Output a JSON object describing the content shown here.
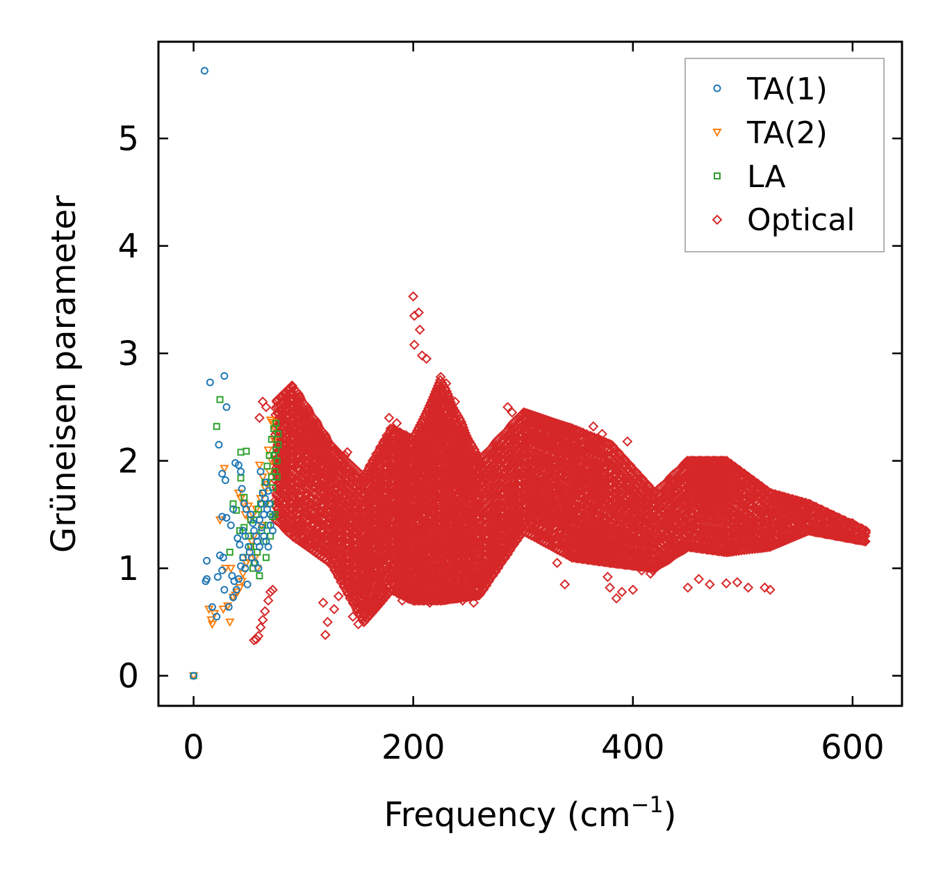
{
  "chart_data": {
    "type": "scatter",
    "xlabel": "Frequency (cm",
    "xlabel_sup": "−1",
    "xlabel_suffix": ")",
    "ylabel": "Grüneisen parameter",
    "xlim": [
      -32,
      645
    ],
    "ylim": [
      -0.28,
      5.9
    ],
    "xticks": [
      0,
      200,
      400,
      600
    ],
    "xtick_labels": [
      "0",
      "200",
      "400",
      "600"
    ],
    "yticks": [
      0,
      1,
      2,
      3,
      4,
      5
    ],
    "ytick_labels": [
      "0",
      "1",
      "2",
      "3",
      "4",
      "5"
    ],
    "grid": false,
    "legend_position": "top-right",
    "series": [
      {
        "name": "TA(1)",
        "marker": "circle",
        "color": "#1f77b4",
        "points": [
          [
            0,
            0
          ],
          [
            10,
            5.63
          ],
          [
            15,
            2.73
          ],
          [
            28,
            2.79
          ],
          [
            30,
            2.5
          ],
          [
            23,
            2.15
          ],
          [
            26,
            1.88
          ],
          [
            29,
            1.82
          ],
          [
            26,
            1.48
          ],
          [
            30,
            1.47
          ],
          [
            12,
            1.07
          ],
          [
            12,
            0.9
          ],
          [
            11,
            0.88
          ],
          [
            17,
            0.64
          ],
          [
            21,
            0.55
          ],
          [
            22,
            0.92
          ],
          [
            26,
            0.98
          ],
          [
            24,
            1.12
          ],
          [
            27,
            1.1
          ],
          [
            28,
            0.8
          ],
          [
            32,
            0.64
          ],
          [
            35,
            0.93
          ],
          [
            37,
            0.88
          ],
          [
            36,
            0.73
          ],
          [
            39,
            0.8
          ],
          [
            41,
            0.9
          ],
          [
            43,
            1.02
          ],
          [
            45,
            1.1
          ],
          [
            47,
            1.0
          ],
          [
            49,
            0.85
          ],
          [
            50,
            1.2
          ],
          [
            38,
            1.98
          ],
          [
            41,
            1.96
          ],
          [
            43,
            1.9
          ],
          [
            44,
            1.74
          ],
          [
            46,
            1.6
          ],
          [
            48,
            1.55
          ],
          [
            52,
            1.5
          ],
          [
            54,
            1.42
          ],
          [
            55,
            1.35
          ],
          [
            57,
            1.3
          ],
          [
            58,
            1.25
          ],
          [
            60,
            1.2
          ],
          [
            62,
            1.6
          ],
          [
            64,
            1.5
          ],
          [
            66,
            1.8
          ],
          [
            68,
            1.72
          ],
          [
            70,
            1.4
          ],
          [
            72,
            1.35
          ],
          [
            61,
            1.9
          ],
          [
            63,
            1.7
          ],
          [
            65,
            1.65
          ],
          [
            67,
            1.55
          ],
          [
            69,
            1.6
          ],
          [
            40,
            1.28
          ],
          [
            42,
            1.22
          ],
          [
            34,
            1.4
          ],
          [
            36,
            1.55
          ],
          [
            45,
            1.35
          ],
          [
            47,
            1.3
          ],
          [
            51,
            1.15
          ],
          [
            53,
            1.1
          ],
          [
            56,
            1.05
          ],
          [
            59,
            1.0
          ],
          [
            60,
            1.45
          ],
          [
            62,
            1.38
          ],
          [
            64,
            1.3
          ],
          [
            66,
            1.25
          ],
          [
            68,
            1.2
          ],
          [
            70,
            1.5
          ]
        ]
      },
      {
        "name": "TA(2)",
        "marker": "triangle-down",
        "color": "#ff7f0e",
        "points": [
          [
            0,
            0
          ],
          [
            17,
            0.48
          ],
          [
            16,
            0.52
          ],
          [
            14,
            0.62
          ],
          [
            19,
            0.58
          ],
          [
            27,
            0.62
          ],
          [
            31,
            0.65
          ],
          [
            33,
            0.5
          ],
          [
            29,
            1.0
          ],
          [
            34,
            1.0
          ],
          [
            24,
            1.45
          ],
          [
            28,
            1.93
          ],
          [
            47,
            1.5
          ],
          [
            50,
            1.58
          ],
          [
            53,
            1.25
          ],
          [
            56,
            1.1
          ],
          [
            58,
            1.0
          ],
          [
            60,
            1.96
          ],
          [
            63,
            1.85
          ],
          [
            65,
            1.75
          ],
          [
            70,
            2.38
          ],
          [
            72,
            2.36
          ],
          [
            68,
            2.1
          ],
          [
            66,
            1.6
          ],
          [
            62,
            1.4
          ],
          [
            55,
            1.3
          ],
          [
            52,
            1.2
          ],
          [
            49,
            1.1
          ],
          [
            45,
            0.95
          ],
          [
            44,
            0.88
          ],
          [
            42,
            0.82
          ],
          [
            40,
            0.78
          ],
          [
            38,
            0.75
          ],
          [
            36,
            0.73
          ],
          [
            48,
            1.05
          ],
          [
            51,
            1.45
          ],
          [
            54,
            1.5
          ],
          [
            57,
            1.55
          ],
          [
            61,
            1.65
          ],
          [
            64,
            1.7
          ],
          [
            67,
            1.78
          ],
          [
            69,
            1.9
          ],
          [
            71,
            2.0
          ],
          [
            73,
            2.2
          ],
          [
            74,
            2.3
          ],
          [
            46,
            1.6
          ],
          [
            43,
            1.65
          ],
          [
            41,
            1.7
          ]
        ]
      },
      {
        "name": "LA",
        "marker": "square",
        "color": "#2ca02c",
        "points": [
          [
            0,
            0
          ],
          [
            24,
            2.57
          ],
          [
            21,
            2.32
          ],
          [
            43,
            2.08
          ],
          [
            48,
            2.09
          ],
          [
            43,
            1.84
          ],
          [
            36,
            1.6
          ],
          [
            46,
            1.66
          ],
          [
            39,
            1.54
          ],
          [
            42,
            1.35
          ],
          [
            46,
            1.38
          ],
          [
            52,
            1.45
          ],
          [
            33,
            1.15
          ],
          [
            45,
            1.1
          ],
          [
            55,
            1.05
          ],
          [
            60,
            0.93
          ],
          [
            66,
            1.1
          ],
          [
            70,
            1.3
          ],
          [
            72,
            1.48
          ],
          [
            74,
            1.5
          ],
          [
            76,
            1.85
          ],
          [
            75,
            2.1
          ],
          [
            73,
            2.3
          ],
          [
            71,
            2.2
          ],
          [
            69,
            2.05
          ],
          [
            67,
            1.95
          ],
          [
            65,
            1.8
          ],
          [
            63,
            1.7
          ],
          [
            61,
            1.6
          ],
          [
            59,
            1.55
          ],
          [
            57,
            1.5
          ],
          [
            55,
            1.45
          ],
          [
            50,
            1.3
          ],
          [
            52,
            1.2
          ],
          [
            64,
            1.25
          ],
          [
            68,
            1.4
          ],
          [
            70,
            1.6
          ],
          [
            72,
            1.75
          ],
          [
            74,
            1.9
          ],
          [
            76,
            2.0
          ],
          [
            77,
            2.15
          ],
          [
            77,
            2.25
          ],
          [
            75,
            2.35
          ],
          [
            73,
            2.05
          ],
          [
            71,
            1.85
          ],
          [
            62,
            1.35
          ],
          [
            58,
            1.15
          ],
          [
            54,
            1.0
          ]
        ]
      },
      {
        "name": "Optical",
        "marker": "diamond",
        "color": "#d62728",
        "bands": [
          {
            "from": 75,
            "to": 90,
            "upper": [
              2.55,
              2.7
            ],
            "lower": [
              1.45,
              1.3
            ]
          },
          {
            "from": 90,
            "to": 125,
            "upper": [
              2.7,
              2.15
            ],
            "lower": [
              1.3,
              1.05
            ]
          },
          {
            "from": 125,
            "to": 155,
            "upper": [
              2.15,
              1.85
            ],
            "lower": [
              1.05,
              0.5
            ]
          },
          {
            "from": 155,
            "to": 180,
            "upper": [
              1.85,
              2.3
            ],
            "lower": [
              0.5,
              0.8
            ]
          },
          {
            "from": 180,
            "to": 200,
            "upper": [
              2.3,
              2.2
            ],
            "lower": [
              0.8,
              0.7
            ]
          },
          {
            "from": 200,
            "to": 225,
            "upper": [
              2.2,
              2.75
            ],
            "lower": [
              0.7,
              0.7
            ]
          },
          {
            "from": 225,
            "to": 260,
            "upper": [
              2.75,
              2.0
            ],
            "lower": [
              0.7,
              0.75
            ]
          },
          {
            "from": 260,
            "to": 300,
            "upper": [
              2.0,
              2.45
            ],
            "lower": [
              0.75,
              1.35
            ]
          },
          {
            "from": 300,
            "to": 345,
            "upper": [
              2.45,
              2.3
            ],
            "lower": [
              1.35,
              1.1
            ]
          },
          {
            "from": 345,
            "to": 380,
            "upper": [
              2.3,
              2.15
            ],
            "lower": [
              1.1,
              1.05
            ]
          },
          {
            "from": 380,
            "to": 420,
            "upper": [
              2.15,
              1.7
            ],
            "lower": [
              1.05,
              1.0
            ]
          },
          {
            "from": 420,
            "to": 450,
            "upper": [
              1.7,
              2.0
            ],
            "lower": [
              1.0,
              1.2
            ]
          },
          {
            "from": 450,
            "to": 485,
            "upper": [
              2.0,
              2.0
            ],
            "lower": [
              1.2,
              1.15
            ]
          },
          {
            "from": 485,
            "to": 525,
            "upper": [
              2.0,
              1.7
            ],
            "lower": [
              1.15,
              1.2
            ]
          },
          {
            "from": 525,
            "to": 560,
            "upper": [
              1.7,
              1.6
            ],
            "lower": [
              1.2,
              1.35
            ]
          },
          {
            "from": 560,
            "to": 612,
            "upper": [
              1.6,
              1.35
            ],
            "lower": [
              1.35,
              1.25
            ]
          }
        ],
        "points": [
          [
            200,
            3.53
          ],
          [
            201,
            3.35
          ],
          [
            205,
            3.38
          ],
          [
            206,
            3.22
          ],
          [
            201,
            3.08
          ],
          [
            208,
            2.98
          ],
          [
            212,
            2.95
          ],
          [
            225,
            2.78
          ],
          [
            230,
            2.72
          ],
          [
            63,
            2.55
          ],
          [
            66,
            2.5
          ],
          [
            60,
            2.4
          ],
          [
            57,
            0.34
          ],
          [
            59,
            0.37
          ],
          [
            61,
            0.45
          ],
          [
            63,
            0.52
          ],
          [
            65,
            0.6
          ],
          [
            68,
            0.7
          ],
          [
            70,
            0.78
          ],
          [
            72,
            0.8
          ],
          [
            55,
            0.33
          ],
          [
            120,
            0.38
          ],
          [
            122,
            0.5
          ],
          [
            128,
            0.62
          ],
          [
            132,
            0.74
          ],
          [
            118,
            0.68
          ],
          [
            145,
            0.55
          ],
          [
            150,
            0.48
          ],
          [
            155,
            0.5
          ],
          [
            158,
            0.62
          ],
          [
            190,
            0.7
          ],
          [
            195,
            0.72
          ],
          [
            215,
            0.68
          ],
          [
            245,
            0.7
          ],
          [
            255,
            0.68
          ],
          [
            286,
            2.5
          ],
          [
            290,
            2.45
          ],
          [
            372,
            2.25
          ],
          [
            395,
            2.18
          ],
          [
            364,
            2.32
          ],
          [
            340,
            2.3
          ],
          [
            331,
            1.05
          ],
          [
            338,
            0.85
          ],
          [
            377,
            0.92
          ],
          [
            379,
            0.82
          ],
          [
            385,
            0.72
          ],
          [
            390,
            0.78
          ],
          [
            400,
            0.8
          ],
          [
            408,
            0.98
          ],
          [
            416,
            0.95
          ],
          [
            418,
            0.98
          ],
          [
            450,
            0.82
          ],
          [
            460,
            0.9
          ],
          [
            470,
            0.85
          ],
          [
            485,
            0.86
          ],
          [
            495,
            0.87
          ],
          [
            505,
            0.82
          ],
          [
            520,
            0.82
          ],
          [
            525,
            0.8
          ],
          [
            140,
            2.08
          ],
          [
            138,
            2.05
          ],
          [
            165,
            1.92
          ],
          [
            110,
            1.8
          ],
          [
            300,
            2.4
          ],
          [
            310,
            2.35
          ],
          [
            320,
            2.3
          ],
          [
            550,
            1.6
          ],
          [
            580,
            1.5
          ],
          [
            600,
            1.42
          ],
          [
            612,
            1.33
          ],
          [
            540,
            1.52
          ],
          [
            530,
            1.45
          ],
          [
            520,
            1.48
          ],
          [
            515,
            1.52
          ],
          [
            170,
            1.8
          ],
          [
            175,
            2.2
          ],
          [
            178,
            2.4
          ],
          [
            185,
            2.35
          ],
          [
            232,
            2.6
          ],
          [
            238,
            2.55
          ]
        ]
      }
    ]
  }
}
